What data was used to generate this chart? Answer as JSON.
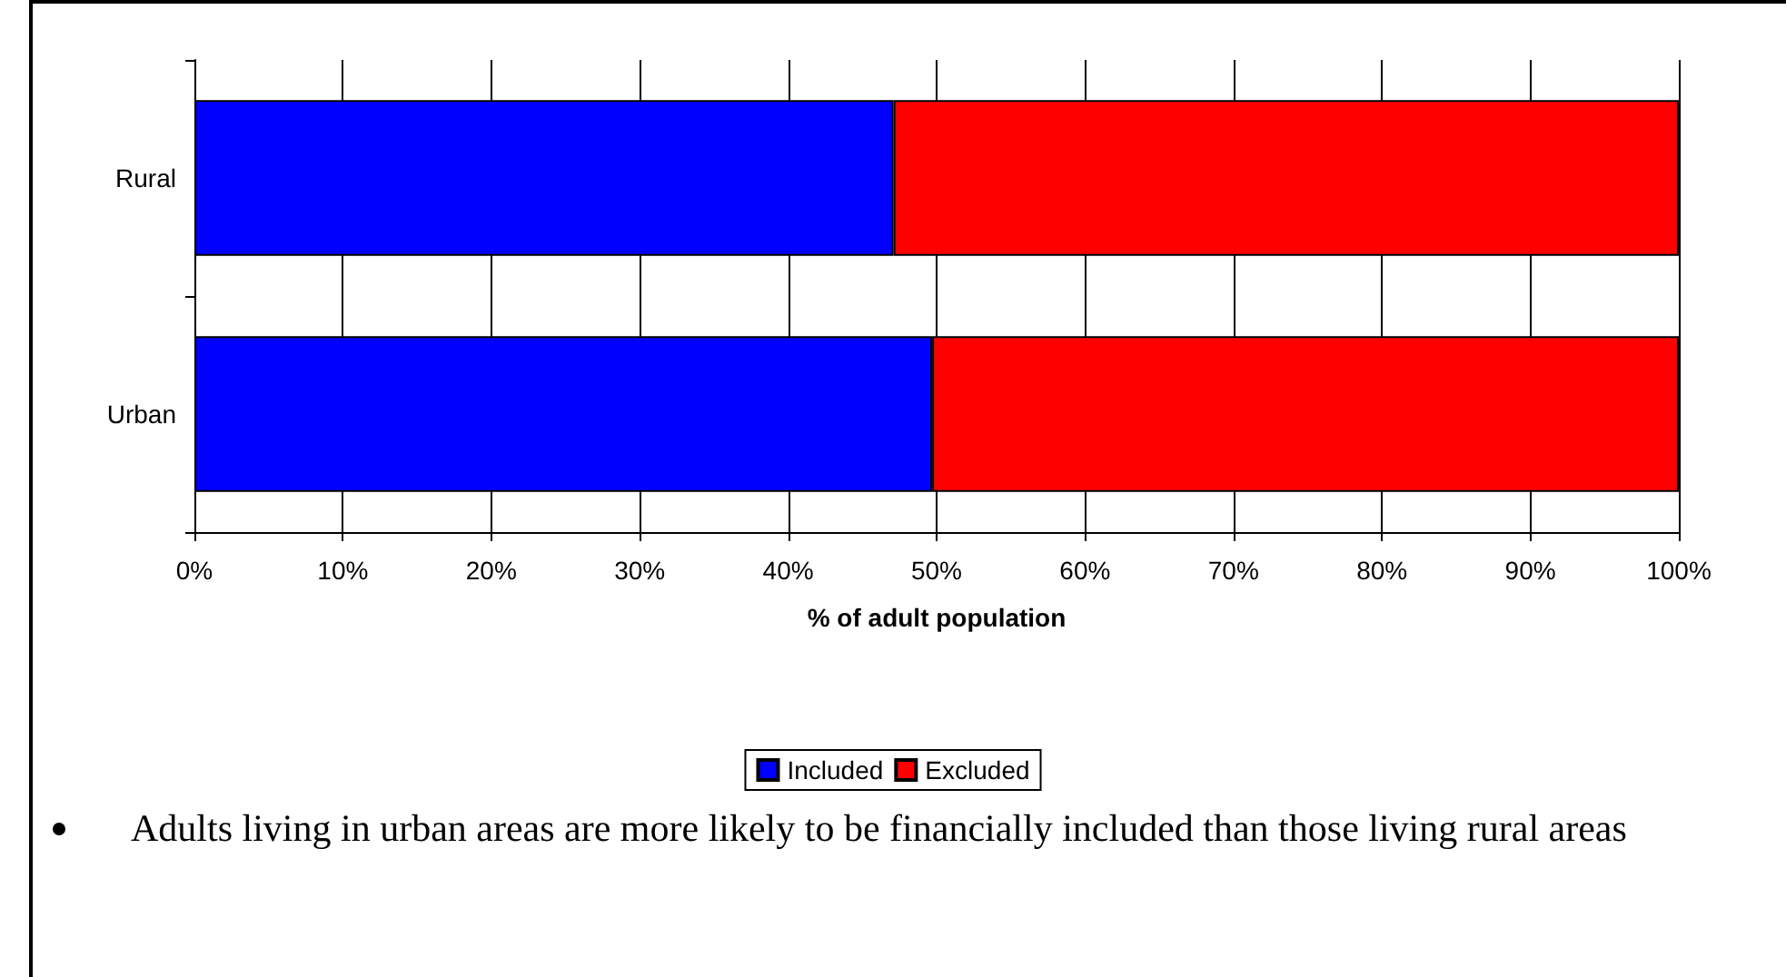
{
  "chart_data": {
    "type": "bar",
    "orientation": "horizontal",
    "stacked": true,
    "categories": [
      "Rural",
      "Urban"
    ],
    "series": [
      {
        "name": "Included",
        "color": "#0000ff",
        "values": [
          47.1,
          49.7
        ]
      },
      {
        "name": "Excluded",
        "color": "#ff0000",
        "values": [
          52.9,
          50.3
        ]
      }
    ],
    "xlim": [
      0,
      100
    ],
    "xticks": [
      {
        "value": 0,
        "label": "0%"
      },
      {
        "value": 10,
        "label": "10%"
      },
      {
        "value": 20,
        "label": "20%"
      },
      {
        "value": 30,
        "label": "30%"
      },
      {
        "value": 40,
        "label": "40%"
      },
      {
        "value": 50,
        "label": "50%"
      },
      {
        "value": 60,
        "label": "60%"
      },
      {
        "value": 70,
        "label": "70%"
      },
      {
        "value": 80,
        "label": "80%"
      },
      {
        "value": 90,
        "label": "90%"
      },
      {
        "value": 100,
        "label": "100%"
      }
    ],
    "xlabel": "% of adult population",
    "grid": "x",
    "legend": "bottom",
    "annotations": [
      "Adults living in urban areas are more likely to be financially included than those living rural areas"
    ]
  }
}
